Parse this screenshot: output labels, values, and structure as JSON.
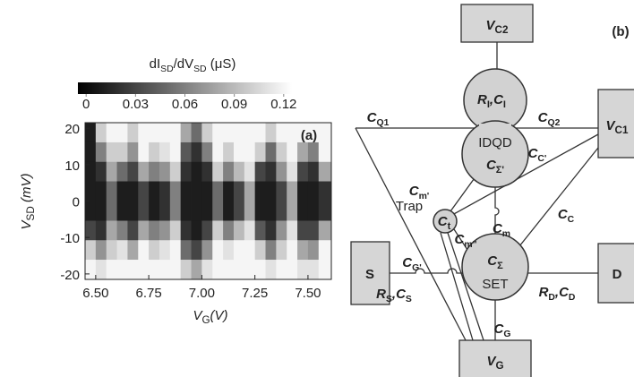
{
  "chart_data": {
    "type": "heatmap",
    "title": [
      "dI",
      "SD",
      "/dV",
      "SD",
      " (μS)"
    ],
    "x_label": [
      "V",
      "G",
      "(V)"
    ],
    "y_label": [
      "V",
      "SD",
      " (mV)"
    ],
    "annotation": "(a)",
    "x": [
      6.475,
      6.525,
      6.575,
      6.625,
      6.675,
      6.725,
      6.775,
      6.825,
      6.875,
      6.925,
      6.975,
      7.025,
      7.075,
      7.125,
      7.175,
      7.225,
      7.275,
      7.325,
      7.375,
      7.425,
      7.475,
      7.525,
      7.575
    ],
    "y": [
      18.8,
      13.4,
      8.1,
      2.7,
      -2.7,
      -8.1,
      -13.4,
      -18.8
    ],
    "z": [
      [
        0.01,
        0.1,
        0.12,
        0.12,
        0.1,
        0.12,
        0.12,
        0.12,
        0.12,
        0.08,
        0.05,
        0.1,
        0.12,
        0.12,
        0.12,
        0.12,
        0.12,
        0.1,
        0.12,
        0.12,
        0.12,
        0.12,
        0.12
      ],
      [
        0.01,
        0.06,
        0.1,
        0.1,
        0.07,
        0.12,
        0.1,
        0.11,
        0.12,
        0.04,
        0.02,
        0.06,
        0.12,
        0.1,
        0.12,
        0.12,
        0.1,
        0.05,
        0.1,
        0.12,
        0.08,
        0.06,
        0.12
      ],
      [
        0.01,
        0.02,
        0.08,
        0.05,
        0.03,
        0.08,
        0.06,
        0.07,
        0.1,
        0.02,
        0.01,
        0.02,
        0.1,
        0.06,
        0.09,
        0.11,
        0.03,
        0.02,
        0.07,
        0.11,
        0.03,
        0.02,
        0.08
      ],
      [
        0.01,
        0.01,
        0.05,
        0.01,
        0.01,
        0.03,
        0.01,
        0.02,
        0.06,
        0.01,
        0.01,
        0.01,
        0.05,
        0.01,
        0.03,
        0.08,
        0.01,
        0.01,
        0.03,
        0.08,
        0.01,
        0.01,
        0.02
      ],
      [
        0.01,
        0.01,
        0.05,
        0.01,
        0.01,
        0.03,
        0.01,
        0.02,
        0.06,
        0.01,
        0.01,
        0.01,
        0.05,
        0.01,
        0.03,
        0.08,
        0.01,
        0.01,
        0.03,
        0.08,
        0.01,
        0.01,
        0.02
      ],
      [
        0.03,
        0.02,
        0.08,
        0.06,
        0.03,
        0.08,
        0.06,
        0.07,
        0.1,
        0.02,
        0.01,
        0.03,
        0.1,
        0.06,
        0.09,
        0.11,
        0.04,
        0.02,
        0.07,
        0.11,
        0.03,
        0.03,
        0.08
      ],
      [
        0.1,
        0.07,
        0.1,
        0.11,
        0.08,
        0.12,
        0.1,
        0.11,
        0.12,
        0.05,
        0.03,
        0.07,
        0.12,
        0.11,
        0.12,
        0.12,
        0.1,
        0.06,
        0.1,
        0.12,
        0.08,
        0.07,
        0.12
      ],
      [
        0.12,
        0.11,
        0.12,
        0.12,
        0.12,
        0.12,
        0.12,
        0.12,
        0.12,
        0.1,
        0.08,
        0.11,
        0.12,
        0.12,
        0.12,
        0.12,
        0.12,
        0.11,
        0.12,
        0.12,
        0.11,
        0.11,
        0.12
      ]
    ],
    "xlim": [
      6.45,
      7.61
    ],
    "xticks": [
      {
        "value": 6.5,
        "label": "6.50"
      },
      {
        "value": 6.75,
        "label": "6.75"
      },
      {
        "value": 7,
        "label": "7.00"
      },
      {
        "value": 7.25,
        "label": "7.25"
      },
      {
        "value": 7.5,
        "label": "7.50"
      }
    ],
    "ylim": [
      -21.5,
      21.5
    ],
    "yticks": [
      -20,
      -10,
      0,
      10,
      20
    ],
    "clim": [
      -0.005,
      0.125
    ],
    "cticks": [
      0,
      0.03,
      0.06,
      0.09,
      0.12
    ]
  },
  "diagram": {
    "label": "(b)",
    "terminals": [
      [
        "V",
        "C2"
      ],
      [
        "V",
        "C1"
      ],
      [
        "S"
      ],
      [
        "D"
      ],
      [
        "V",
        "G"
      ]
    ],
    "components": [
      [
        "R",
        "I",
        ",C",
        "I"
      ],
      [
        "IDQD"
      ],
      [
        "C",
        "Σ'"
      ],
      [
        "Trap"
      ],
      [
        "C",
        "t"
      ],
      [
        "C",
        "Σ"
      ],
      [
        "SET"
      ]
    ],
    "capacitances": [
      [
        "C",
        "Q1"
      ],
      [
        "C",
        "Q2"
      ],
      [
        "C",
        "C'"
      ],
      [
        "C",
        "m'"
      ],
      [
        "C",
        "m\""
      ],
      [
        "C",
        "m"
      ],
      [
        "C",
        "C"
      ],
      [
        "C",
        "G'"
      ],
      [
        "R",
        "S",
        ",C",
        "S"
      ],
      [
        "R",
        "D",
        ",C",
        "D"
      ],
      [
        "C",
        "G"
      ]
    ]
  }
}
